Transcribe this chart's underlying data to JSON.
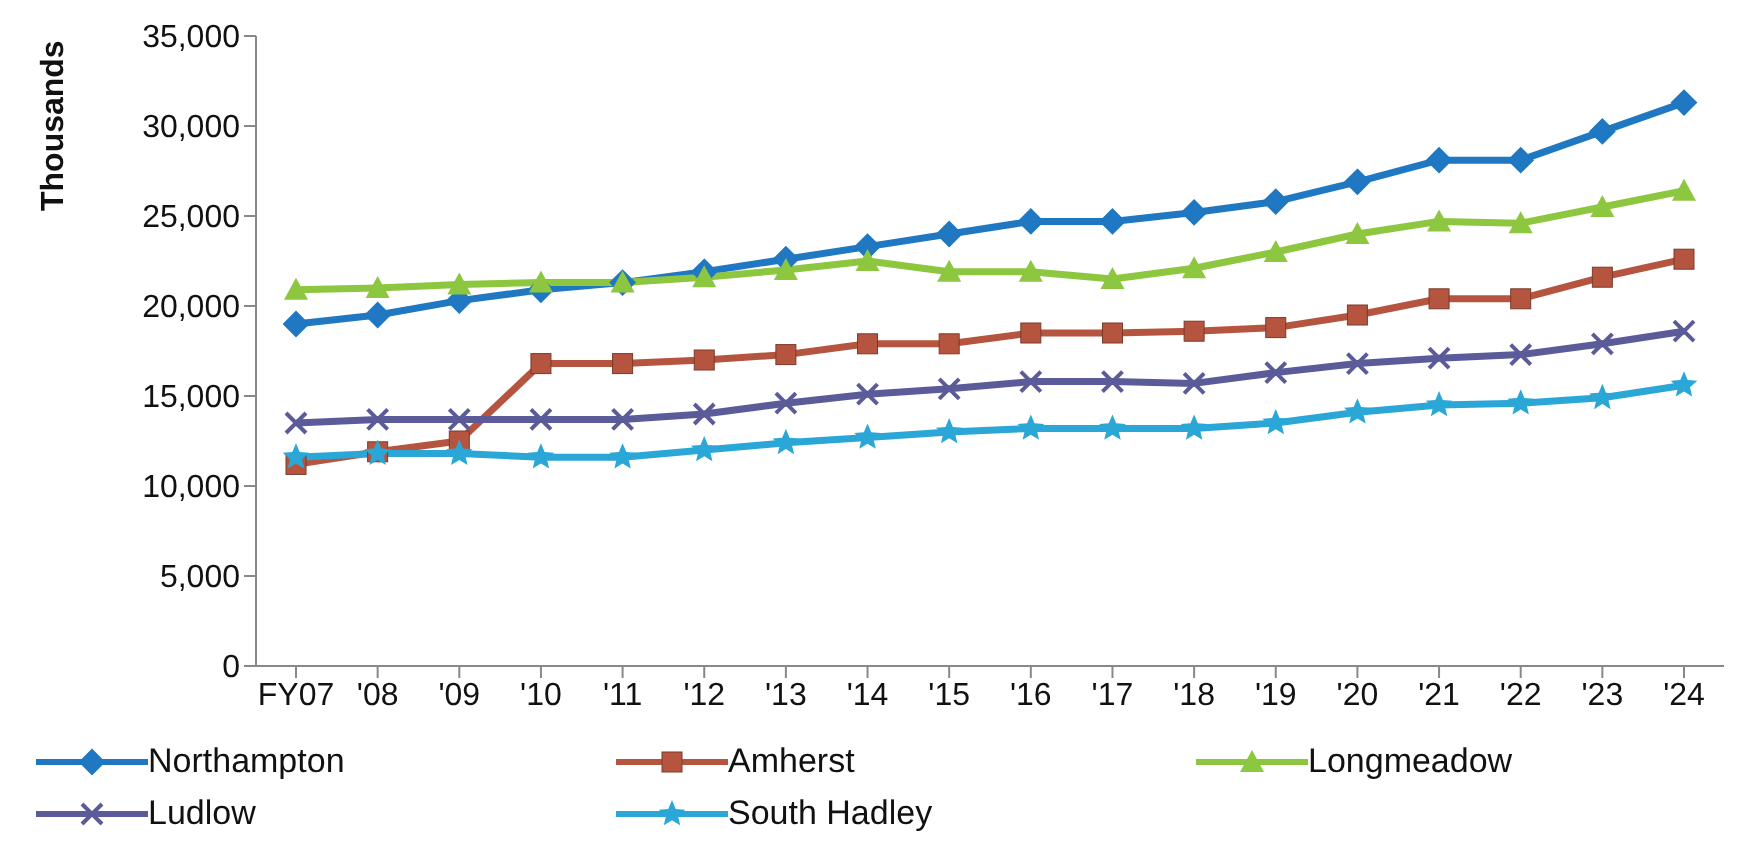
{
  "chart_data": {
    "type": "line",
    "ylabel": "Thousands",
    "categories": [
      "FY07",
      "'08",
      "'09",
      "'10",
      "'11",
      "'12",
      "'13",
      "'14",
      "'15",
      "'16",
      "'17",
      "'18",
      "'19",
      "'20",
      "'21",
      "'22",
      "'23",
      "'24"
    ],
    "ylim": [
      0,
      35000
    ],
    "yticks": [
      {
        "value": 0,
        "label": "0"
      },
      {
        "value": 5000,
        "label": "5,000"
      },
      {
        "value": 10000,
        "label": "10,000"
      },
      {
        "value": 15000,
        "label": "15,000"
      },
      {
        "value": 20000,
        "label": "20,000"
      },
      {
        "value": 25000,
        "label": "25,000"
      },
      {
        "value": 30000,
        "label": "30,000"
      },
      {
        "value": 35000,
        "label": "35,000"
      }
    ],
    "grid": false,
    "legend": "bottom",
    "line_style": "solid",
    "series": [
      {
        "name": "Northampton",
        "color": "#1f78c1",
        "marker": "diamond",
        "values": [
          19000,
          19500,
          20300,
          20900,
          21300,
          21900,
          22600,
          23300,
          24000,
          24700,
          24700,
          25200,
          25800,
          26900,
          28100,
          28100,
          29700,
          31300
        ]
      },
      {
        "name": "Amherst",
        "color": "#b5553f",
        "marker": "square",
        "values": [
          11200,
          11900,
          12500,
          16800,
          16800,
          17000,
          17300,
          17900,
          17900,
          18500,
          18500,
          18600,
          18800,
          19500,
          20400,
          20400,
          21600,
          22600
        ]
      },
      {
        "name": "Longmeadow",
        "color": "#8dc63f",
        "marker": "triangle",
        "values": [
          20900,
          21000,
          21200,
          21300,
          21300,
          21600,
          22000,
          22500,
          21900,
          21900,
          21500,
          22100,
          23000,
          24000,
          24700,
          24600,
          25500,
          26400
        ]
      },
      {
        "name": "Ludlow",
        "color": "#5b5b9a",
        "marker": "cross",
        "values": [
          13500,
          13700,
          13700,
          13700,
          13700,
          14000,
          14600,
          15100,
          15400,
          15800,
          15800,
          15700,
          16300,
          16800,
          17100,
          17300,
          17900,
          18600
        ]
      },
      {
        "name": "South Hadley",
        "color": "#2aa7d6",
        "marker": "star",
        "values": [
          11600,
          11800,
          11800,
          11600,
          11600,
          12000,
          12400,
          12700,
          13000,
          13200,
          13200,
          13200,
          13500,
          14100,
          14500,
          14600,
          14900,
          15600
        ]
      }
    ]
  }
}
